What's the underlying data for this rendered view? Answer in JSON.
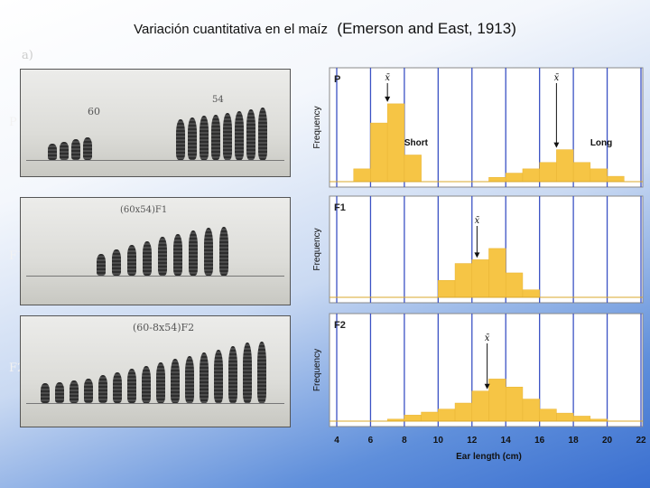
{
  "title": {
    "main": "Variación cuantitativa en el maíz",
    "citation": "(Emerson and East, 1913)"
  },
  "corner_label": "a)",
  "generation_labels": [
    "P",
    "F1",
    "F2"
  ],
  "photos": [
    {
      "labels": [
        "60",
        "54"
      ],
      "ear_heights": [
        0.2,
        0.22,
        0.26,
        0.28,
        0.5,
        0.52,
        0.54,
        0.56,
        0.58,
        0.6,
        0.62,
        0.64
      ]
    },
    {
      "labels": [
        "(60x54)F1"
      ],
      "ear_heights": [
        0.3,
        0.36,
        0.42,
        0.48,
        0.54,
        0.58,
        0.62,
        0.66,
        0.68
      ]
    },
    {
      "labels": [
        "(60-8x54)F2"
      ],
      "ear_heights": [
        0.24,
        0.26,
        0.28,
        0.3,
        0.34,
        0.38,
        0.42,
        0.46,
        0.5,
        0.54,
        0.58,
        0.62,
        0.66,
        0.7,
        0.74,
        0.76
      ]
    }
  ],
  "chart_data": [
    {
      "type": "bar",
      "panel_label": "P",
      "ylabel": "Frequency",
      "xlim": [
        4,
        22
      ],
      "series": [
        {
          "name": "Short",
          "bins": [
            [
              5,
              6,
              0.12
            ],
            [
              6,
              7,
              0.55
            ],
            [
              7,
              8,
              0.73
            ],
            [
              8,
              9,
              0.25
            ]
          ]
        },
        {
          "name": "Long",
          "bins": [
            [
              13,
              14,
              0.04
            ],
            [
              14,
              15,
              0.08
            ],
            [
              15,
              16,
              0.12
            ],
            [
              16,
              17,
              0.18
            ],
            [
              17,
              18,
              0.3
            ],
            [
              18,
              19,
              0.18
            ],
            [
              19,
              20,
              0.12
            ],
            [
              20,
              21,
              0.05
            ]
          ]
        }
      ],
      "means": [
        7,
        17
      ],
      "mean_symbol": "x̄",
      "annotations": [
        "Short",
        "Long"
      ]
    },
    {
      "type": "bar",
      "panel_label": "F1",
      "ylabel": "Frequency",
      "xlim": [
        4,
        22
      ],
      "bins": [
        [
          10,
          11,
          0.18
        ],
        [
          11,
          12,
          0.36
        ],
        [
          12,
          13,
          0.4
        ],
        [
          13,
          14,
          0.52
        ],
        [
          14,
          15,
          0.26
        ],
        [
          15,
          16,
          0.08
        ]
      ],
      "means": [
        12.3
      ],
      "mean_symbol": "x̄"
    },
    {
      "type": "bar",
      "panel_label": "F2",
      "ylabel": "Frequency",
      "xlim": [
        4,
        22
      ],
      "xlabel": "Ear length (cm)",
      "xticks": [
        4,
        6,
        8,
        10,
        12,
        14,
        16,
        18,
        20,
        22
      ],
      "bins": [
        [
          7,
          8,
          0.02
        ],
        [
          8,
          9,
          0.06
        ],
        [
          9,
          10,
          0.09
        ],
        [
          10,
          11,
          0.12
        ],
        [
          11,
          12,
          0.18
        ],
        [
          12,
          13,
          0.3
        ],
        [
          13,
          14,
          0.42
        ],
        [
          14,
          15,
          0.34
        ],
        [
          15,
          16,
          0.22
        ],
        [
          16,
          17,
          0.12
        ],
        [
          17,
          18,
          0.08
        ],
        [
          18,
          19,
          0.05
        ],
        [
          19,
          20,
          0.02
        ]
      ],
      "means": [
        12.9
      ],
      "mean_symbol": "x̄"
    }
  ]
}
